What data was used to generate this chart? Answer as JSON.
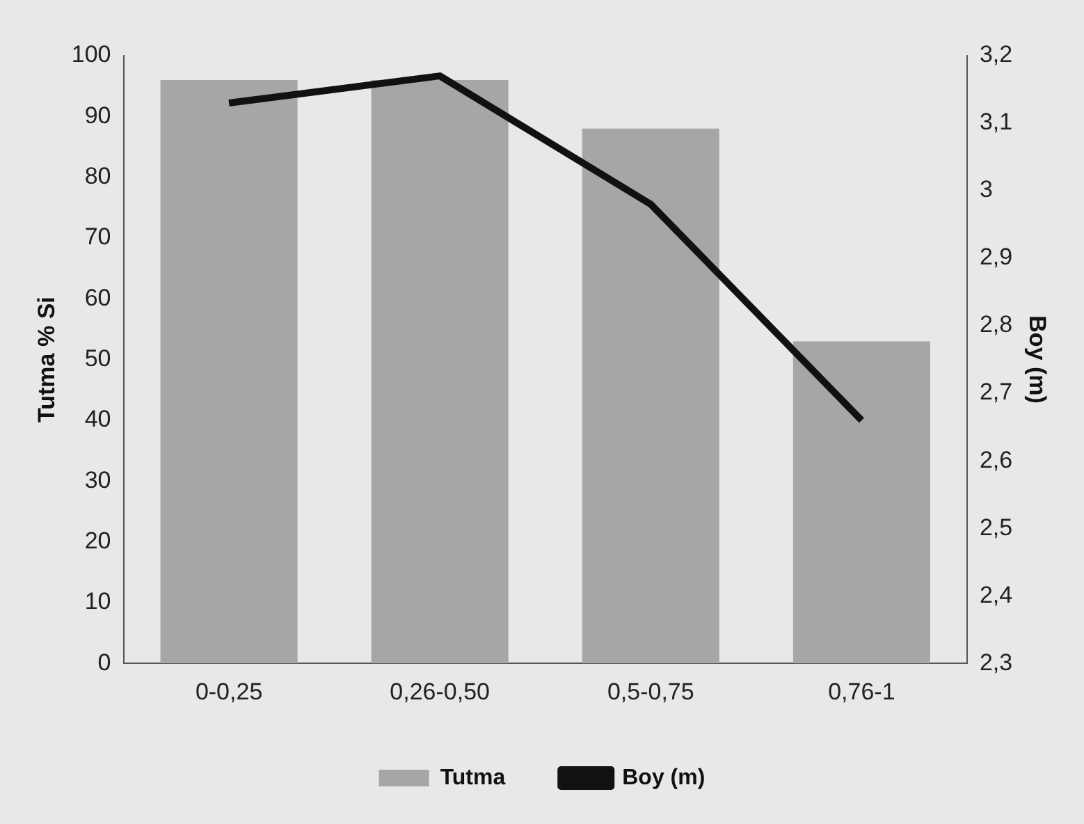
{
  "chart_data": {
    "type": "bar",
    "ylabel": "Tutma % Si",
    "y2label": "Boy (m)",
    "categories": [
      "0-0,25",
      "0,26-0,50",
      "0,5-0,75",
      "0,76-1"
    ],
    "series": [
      {
        "name": "Tutma",
        "color": "#a6a6a6",
        "values": [
          96,
          96,
          88,
          53
        ]
      },
      {
        "name": "Boy (m)",
        "type": "line",
        "axis": "y2",
        "color": "#111111",
        "values": [
          3.13,
          3.17,
          2.98,
          2.66
        ]
      }
    ],
    "ylim": [
      0,
      100
    ],
    "yticks": [
      0,
      10,
      20,
      30,
      40,
      50,
      60,
      70,
      80,
      90,
      100
    ],
    "y2lim": [
      2.3,
      3.2
    ],
    "y2ticks": [
      {
        "value": 2.3,
        "label": "2,3"
      },
      {
        "value": 2.4,
        "label": "2,4"
      },
      {
        "value": 2.5,
        "label": "2,5"
      },
      {
        "value": 2.6,
        "label": "2,6"
      },
      {
        "value": 2.7,
        "label": "2,7"
      },
      {
        "value": 2.8,
        "label": "2,8"
      },
      {
        "value": 2.9,
        "label": "2,9"
      },
      3,
      {
        "value": 3.1,
        "label": "3,1"
      },
      {
        "value": 3.2,
        "label": "3,2"
      }
    ],
    "grid": false,
    "legend": "bottom",
    "marker": "none",
    "line_style": "solid"
  }
}
